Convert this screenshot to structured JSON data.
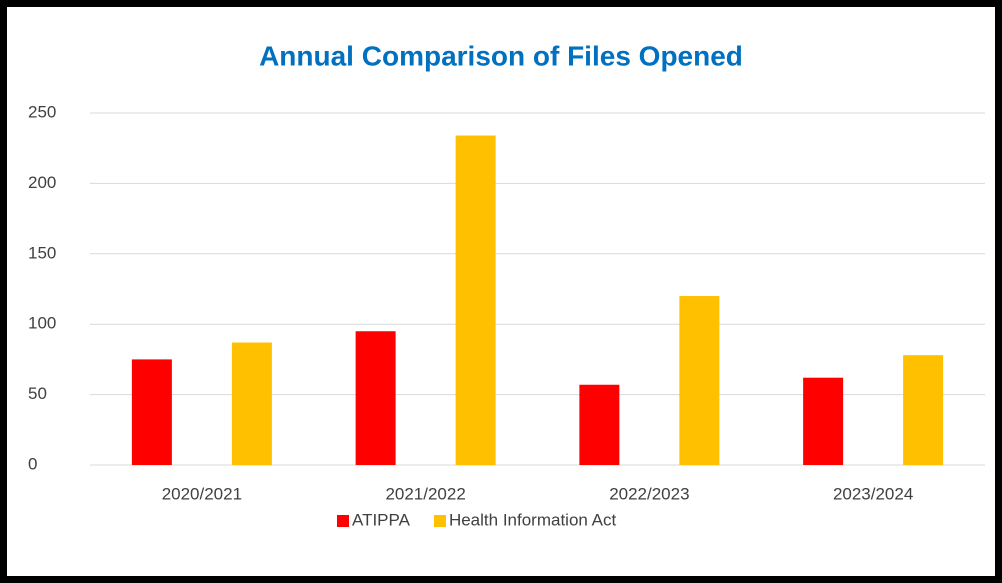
{
  "chart_data": {
    "type": "bar",
    "title": "Annual Comparison of Files Opened",
    "categories": [
      "2020/2021",
      "2021/2022",
      "2022/2023",
      "2023/2024"
    ],
    "series": [
      {
        "name": "ATIPPA",
        "color": "#ff0000",
        "values": [
          75,
          95,
          57,
          62
        ]
      },
      {
        "name": "Health Information Act",
        "color": "#ffc000",
        "values": [
          87,
          234,
          120,
          78
        ]
      }
    ],
    "ylim": [
      0,
      250
    ],
    "yticks": [
      0,
      50,
      100,
      150,
      200,
      250
    ],
    "grid": true,
    "legend": "bottom"
  }
}
